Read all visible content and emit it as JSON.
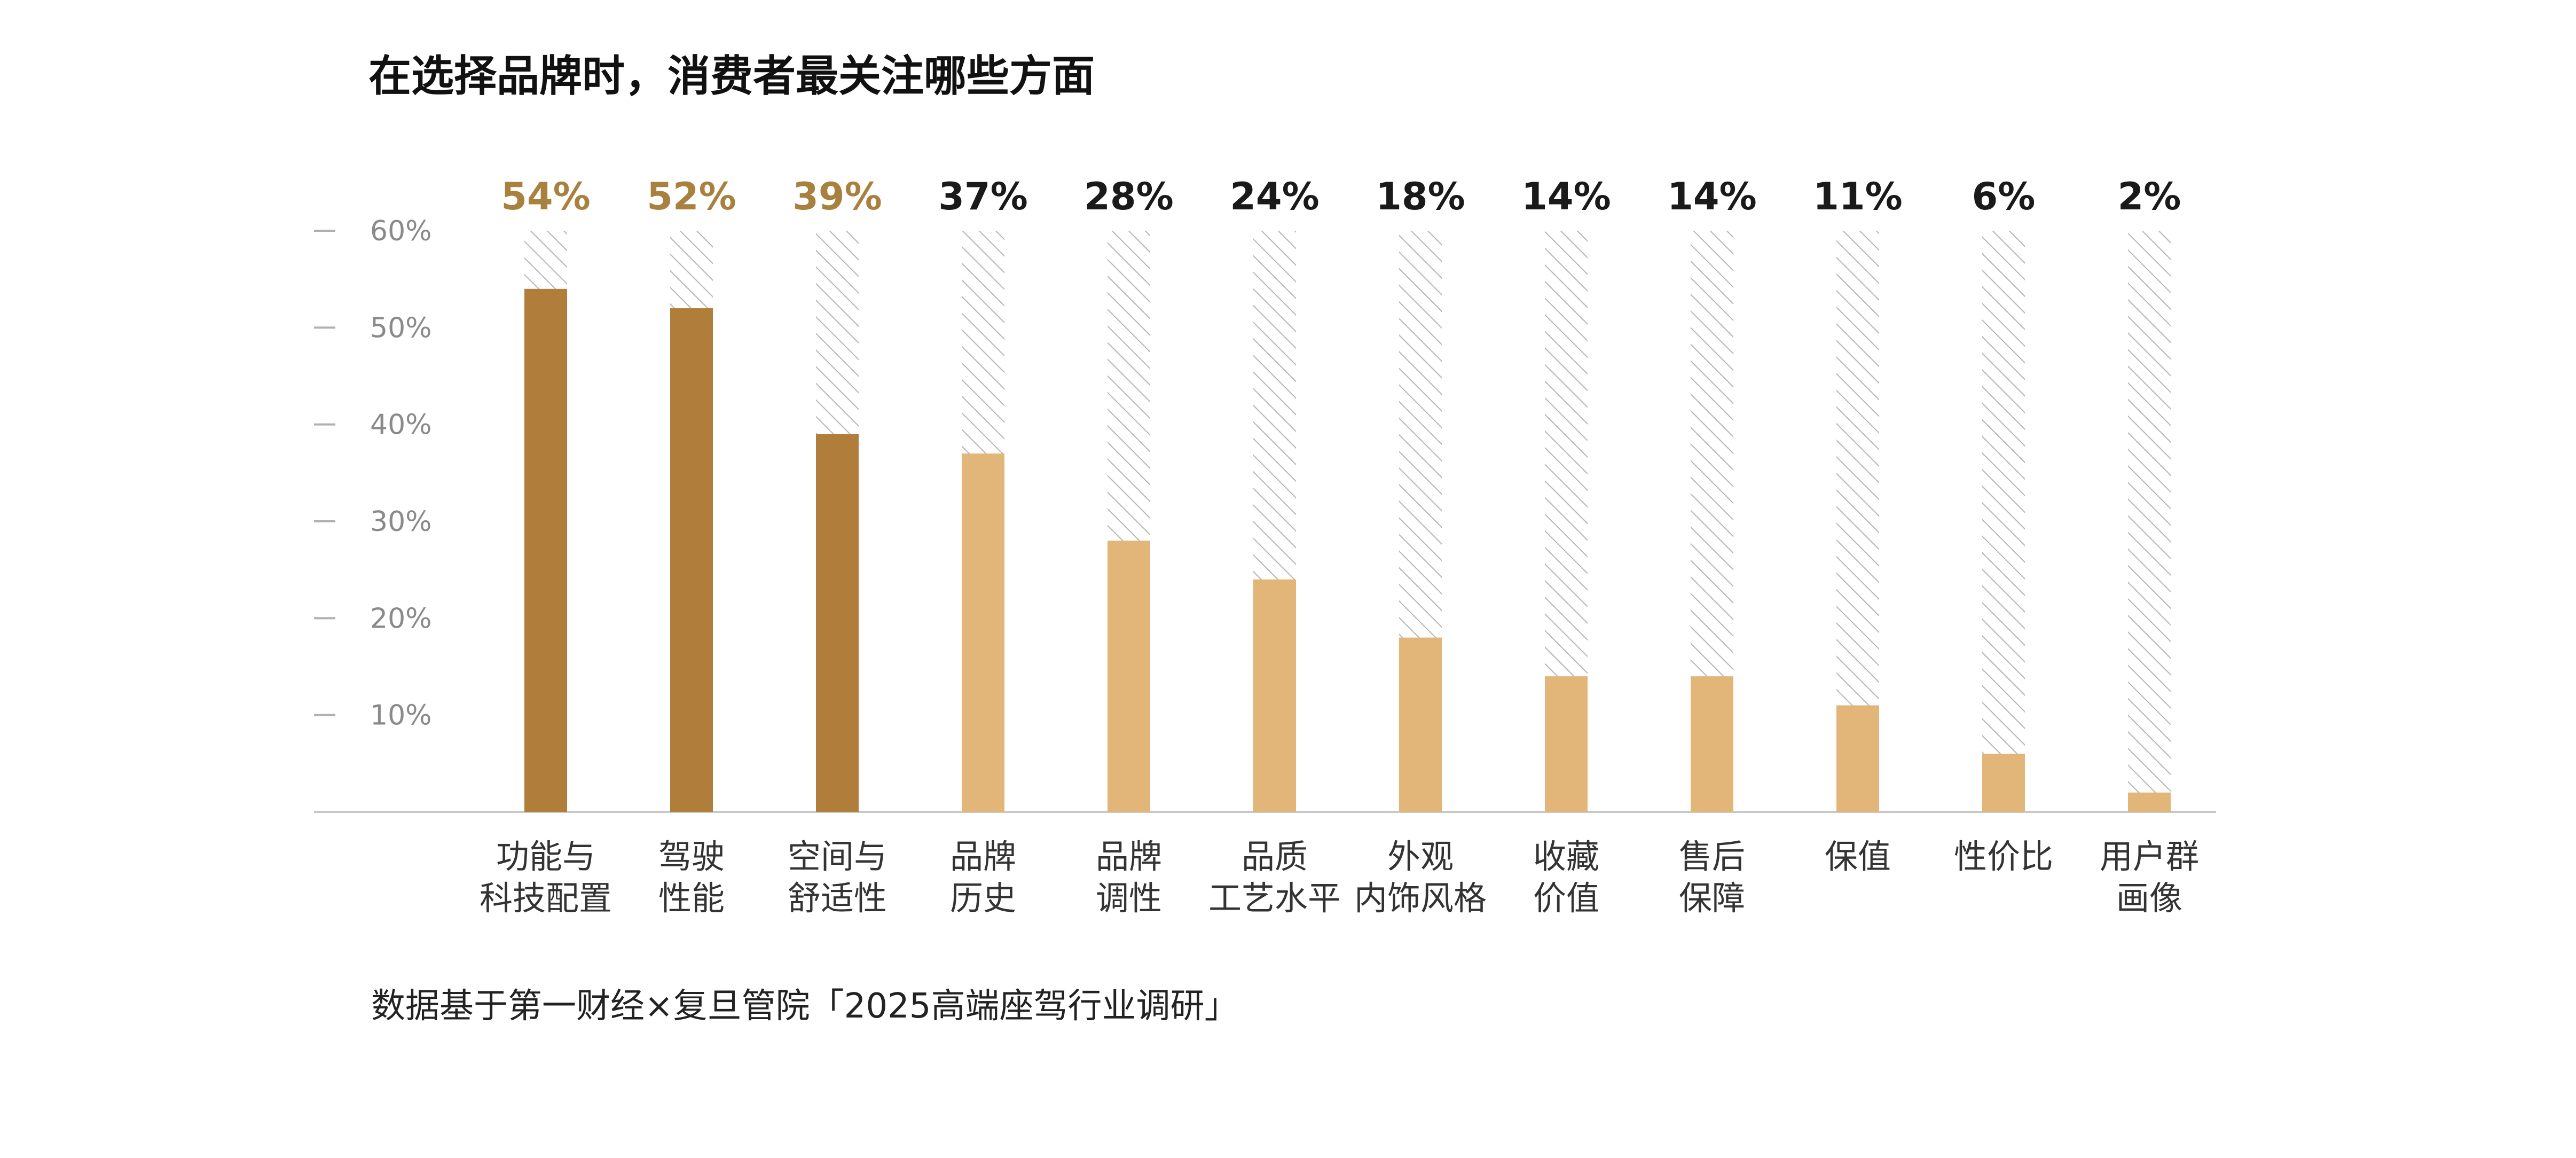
{
  "chart_data": {
    "type": "bar",
    "title": "在选择品牌时，消费者最关注哪些方面",
    "source": "数据基于第一财经×复旦管院「2025高端座驾行业调研」",
    "categories": [
      [
        "功能与",
        "科技配置"
      ],
      [
        "驾驶",
        "性能"
      ],
      [
        "空间与",
        "舒适性"
      ],
      [
        "品牌",
        "历史"
      ],
      [
        "品牌",
        "调性"
      ],
      [
        "品质",
        "工艺水平"
      ],
      [
        "外观",
        "内饰风格"
      ],
      [
        "收藏",
        "价值"
      ],
      [
        "售后",
        "保障"
      ],
      [
        "保值"
      ],
      [
        "性价比"
      ],
      [
        "用户群",
        "画像"
      ]
    ],
    "values": [
      54,
      52,
      39,
      37,
      28,
      24,
      18,
      14,
      14,
      11,
      6,
      2
    ],
    "value_labels": [
      "54%",
      "52%",
      "39%",
      "37%",
      "28%",
      "24%",
      "18%",
      "14%",
      "14%",
      "11%",
      "6%",
      "2%"
    ],
    "highlight_count": 3,
    "colors": {
      "highlight_bar": "#b07e3a",
      "normal_bar": "#e2b678",
      "highlight_label": "#a8813e",
      "normal_label": "#1a1a1a",
      "hatch": "#b5b5b5",
      "axis": "#c8c8c8"
    },
    "ylim": [
      0,
      60
    ],
    "yticks": [
      10,
      20,
      30,
      40,
      50,
      60
    ],
    "ytick_labels": [
      "10%",
      "20%",
      "30%",
      "40%",
      "50%",
      "60%"
    ],
    "background_bar_max": 60,
    "grid": false,
    "legend": "none",
    "xlabel": "",
    "ylabel": ""
  }
}
